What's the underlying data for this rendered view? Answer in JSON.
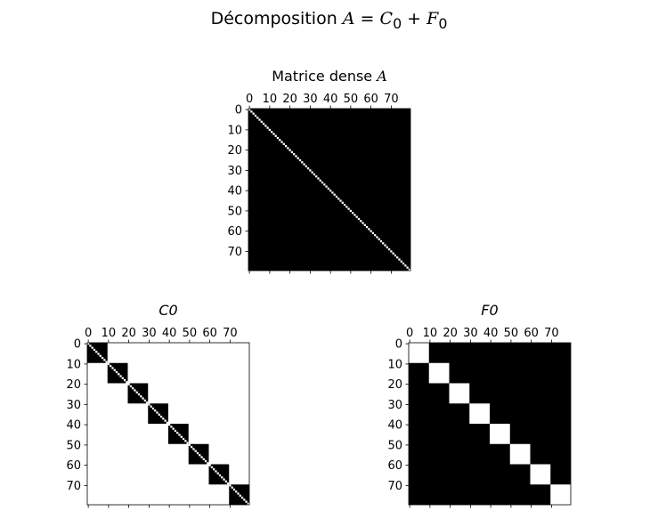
{
  "title": {
    "prefix": "Décomposition ",
    "A": "A",
    "eq": " = ",
    "C": "C",
    "C_sub": "0",
    "plus": " + ",
    "F": "F",
    "F_sub": "0"
  },
  "chart_data": [
    {
      "type": "heatmap",
      "title": "Matrice dense A",
      "title_parts": {
        "text": "Matrice dense ",
        "italic": "A"
      },
      "size": 80,
      "block_size": 10,
      "pattern": "dense_black_white_diagonal",
      "xticks": [
        "0",
        "10",
        "20",
        "30",
        "40",
        "50",
        "60",
        "70"
      ],
      "yticks": [
        "0",
        "10",
        "20",
        "30",
        "40",
        "50",
        "60",
        "70"
      ],
      "colors": {
        "nonzero": "#000000",
        "zero": "#ffffff"
      }
    },
    {
      "type": "heatmap",
      "title": "C0",
      "size": 80,
      "block_size": 10,
      "pattern": "block_diagonal_black_white_diagonal",
      "xticks": [
        "0",
        "10",
        "20",
        "30",
        "40",
        "50",
        "60",
        "70"
      ],
      "yticks": [
        "0",
        "10",
        "20",
        "30",
        "40",
        "50",
        "60",
        "70"
      ],
      "colors": {
        "nonzero": "#000000",
        "zero": "#ffffff"
      }
    },
    {
      "type": "heatmap",
      "title": "F0",
      "size": 80,
      "block_size": 10,
      "pattern": "off_block_black",
      "xticks": [
        "0",
        "10",
        "20",
        "30",
        "40",
        "50",
        "60",
        "70"
      ],
      "yticks": [
        "0",
        "10",
        "20",
        "30",
        "40",
        "50",
        "60",
        "70"
      ],
      "colors": {
        "nonzero": "#000000",
        "zero": "#ffffff"
      }
    }
  ]
}
